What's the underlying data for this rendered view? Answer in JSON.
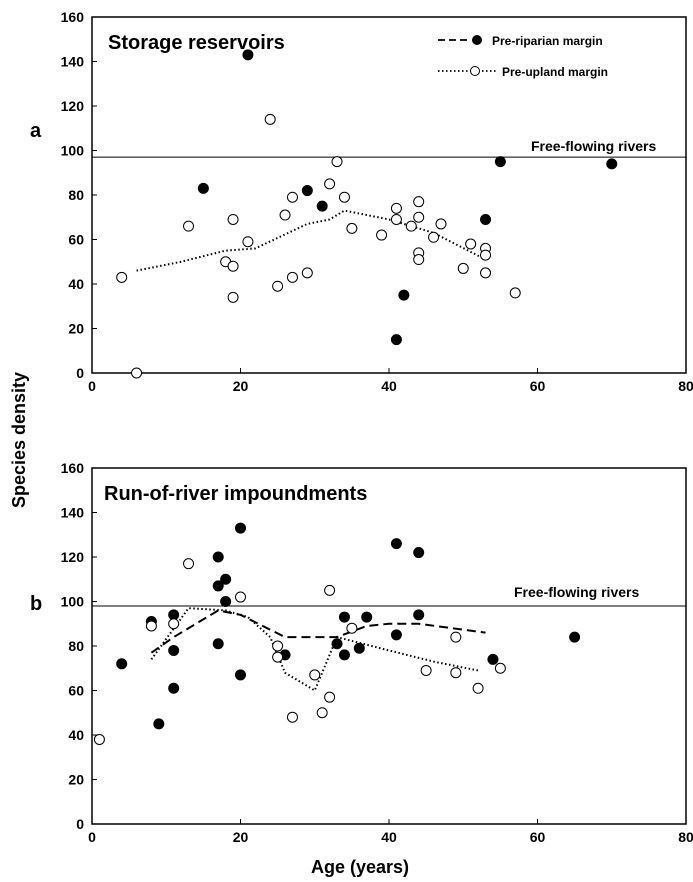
{
  "chart_data": [
    {
      "type": "scatter",
      "panel_label": "a",
      "title": "Storage reservoirs",
      "xlim": [
        0,
        80
      ],
      "ylim": [
        0,
        160
      ],
      "x_ticks": [
        "0",
        "20",
        "40",
        "60",
        "80"
      ],
      "y_ticks": [
        "0",
        "20",
        "40",
        "60",
        "80",
        "100",
        "120",
        "140",
        "160"
      ],
      "reference_line": {
        "label": "Free-flowing rivers",
        "y": 97
      },
      "legend": [
        {
          "label": "Pre-riparian margin",
          "marker": "filled-circle",
          "line": "dashed"
        },
        {
          "label": "Pre-upland margin",
          "marker": "open-circle",
          "line": "dotted"
        }
      ],
      "series": [
        {
          "name": "Pre-riparian margin",
          "marker": "filled",
          "points": [
            [
              15,
              83
            ],
            [
              21,
              143
            ],
            [
              29,
              82
            ],
            [
              31,
              75
            ],
            [
              41,
              15
            ],
            [
              42,
              35
            ],
            [
              53,
              69
            ],
            [
              55,
              95
            ],
            [
              70,
              94
            ]
          ]
        },
        {
          "name": "Pre-upland margin",
          "marker": "open",
          "points": [
            [
              4,
              43
            ],
            [
              6,
              0
            ],
            [
              13,
              66
            ],
            [
              18,
              50
            ],
            [
              19,
              69
            ],
            [
              19,
              48
            ],
            [
              19,
              34
            ],
            [
              21,
              59
            ],
            [
              24,
              114
            ],
            [
              25,
              39
            ],
            [
              26,
              71
            ],
            [
              27,
              79
            ],
            [
              27,
              43
            ],
            [
              29,
              45
            ],
            [
              32,
              85
            ],
            [
              33,
              95
            ],
            [
              34,
              79
            ],
            [
              35,
              65
            ],
            [
              39,
              62
            ],
            [
              41,
              74
            ],
            [
              41,
              69
            ],
            [
              43,
              66
            ],
            [
              44,
              77
            ],
            [
              44,
              70
            ],
            [
              44,
              54
            ],
            [
              44,
              51
            ],
            [
              46,
              61
            ],
            [
              47,
              67
            ],
            [
              50,
              47
            ],
            [
              51,
              58
            ],
            [
              53,
              56
            ],
            [
              53,
              53
            ],
            [
              53,
              45
            ],
            [
              57,
              36
            ]
          ]
        }
      ],
      "trend_lines": [
        {
          "name": "Pre-upland margin",
          "style": "dotted",
          "points": [
            [
              6,
              46
            ],
            [
              12,
              50
            ],
            [
              18,
              55
            ],
            [
              22,
              56
            ],
            [
              29,
              67
            ],
            [
              32,
              69
            ],
            [
              34,
              73
            ],
            [
              40,
              69
            ],
            [
              46,
              63
            ],
            [
              53,
              51
            ]
          ]
        }
      ]
    },
    {
      "type": "scatter",
      "panel_label": "b",
      "title": "Run-of-river impoundments",
      "xlim": [
        0,
        80
      ],
      "ylim": [
        0,
        160
      ],
      "x_ticks": [
        "0",
        "20",
        "40",
        "60",
        "80"
      ],
      "y_ticks": [
        "0",
        "20",
        "40",
        "60",
        "80",
        "100",
        "120",
        "140",
        "160"
      ],
      "reference_line": {
        "label": "Free-flowing rivers",
        "y": 98
      },
      "series": [
        {
          "name": "Pre-riparian margin",
          "marker": "filled",
          "points": [
            [
              4,
              72
            ],
            [
              8,
              91
            ],
            [
              9,
              45
            ],
            [
              11,
              94
            ],
            [
              11,
              78
            ],
            [
              11,
              61
            ],
            [
              17,
              120
            ],
            [
              17,
              107
            ],
            [
              17,
              81
            ],
            [
              18,
              110
            ],
            [
              18,
              100
            ],
            [
              20,
              133
            ],
            [
              20,
              67
            ],
            [
              26,
              76
            ],
            [
              33,
              81
            ],
            [
              34,
              93
            ],
            [
              34,
              76
            ],
            [
              36,
              79
            ],
            [
              37,
              93
            ],
            [
              41,
              126
            ],
            [
              41,
              85
            ],
            [
              44,
              122
            ],
            [
              44,
              94
            ],
            [
              54,
              74
            ],
            [
              65,
              84
            ]
          ]
        },
        {
          "name": "Pre-upland margin",
          "marker": "open",
          "points": [
            [
              1,
              38
            ],
            [
              8,
              89
            ],
            [
              11,
              90
            ],
            [
              13,
              117
            ],
            [
              20,
              102
            ],
            [
              25,
              80
            ],
            [
              25,
              75
            ],
            [
              27,
              48
            ],
            [
              30,
              67
            ],
            [
              31,
              50
            ],
            [
              32,
              105
            ],
            [
              32,
              57
            ],
            [
              35,
              88
            ],
            [
              45,
              69
            ],
            [
              49,
              84
            ],
            [
              49,
              68
            ],
            [
              52,
              61
            ],
            [
              55,
              70
            ]
          ]
        }
      ],
      "trend_lines": [
        {
          "name": "Pre-riparian margin",
          "style": "dashed",
          "points": [
            [
              8,
              77
            ],
            [
              11,
              84
            ],
            [
              17,
              96
            ],
            [
              20,
              94
            ],
            [
              23,
              89
            ],
            [
              26,
              84
            ],
            [
              33,
              84
            ],
            [
              37,
              89
            ],
            [
              40,
              90
            ],
            [
              44,
              90
            ],
            [
              53,
              86
            ]
          ]
        },
        {
          "name": "Pre-upland margin",
          "style": "dotted",
          "points": [
            [
              8,
              74
            ],
            [
              13,
              97
            ],
            [
              18,
              96
            ],
            [
              21,
              93
            ],
            [
              24,
              84
            ],
            [
              26,
              68
            ],
            [
              30,
              60
            ],
            [
              33,
              84
            ],
            [
              40,
              78
            ],
            [
              46,
              73
            ],
            [
              52,
              69
            ]
          ]
        }
      ]
    }
  ],
  "y_axis_label": "Species density",
  "x_axis_label": "Age (years)"
}
